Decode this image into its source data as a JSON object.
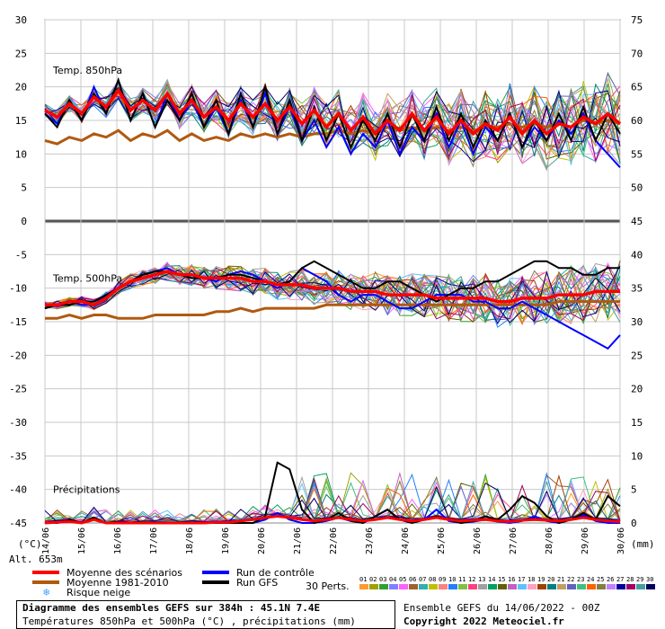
{
  "chart_data": {
    "type": "line",
    "title": "Diagramme des ensembles GEFS sur 384h : 45.1N 7.4E",
    "subtitle": "Températures 850hPa et 500hPa (°C) , précipitations (mm)",
    "run_info": "Ensemble GEFS du 14/06/2022 - 00Z",
    "copyright": "Copyright 2022 Meteociel.fr",
    "altitude_label": "Alt. 653m",
    "left_unit": "(°C)",
    "right_unit": "(mm)",
    "left_ticks": [
      30,
      25,
      20,
      15,
      10,
      5,
      0,
      -5,
      -10,
      -15,
      -20,
      -25,
      -30,
      -35,
      -40,
      -45
    ],
    "right_ticks_temp850": [
      75,
      70,
      65,
      60,
      55,
      50,
      45
    ],
    "right_ticks_temp500": [
      40,
      35,
      30,
      25,
      20
    ],
    "right_ticks_precip": [
      15,
      10,
      5,
      0
    ],
    "dates": [
      "14/06",
      "15/06",
      "16/06",
      "17/06",
      "18/06",
      "19/06",
      "20/06",
      "21/06",
      "22/06",
      "23/06",
      "24/06",
      "25/06",
      "26/06",
      "27/06",
      "28/06",
      "29/06",
      "30/06"
    ],
    "panel_labels": {
      "t850": "Temp. 850hPa",
      "t500": "Temp. 500hPa",
      "precip": "Précipitations"
    },
    "legend": [
      {
        "name": "Moyenne des scénarios",
        "color": "#ff0000"
      },
      {
        "name": "Moyenne 1981-2010",
        "color": "#b05a10"
      },
      {
        "name": "Risque neige",
        "color": "#40a0ff"
      },
      {
        "name": "Run de contrôle",
        "color": "#0000ff"
      },
      {
        "name": "Run GFS",
        "color": "#000000"
      }
    ],
    "perts_label": "30 Perts.",
    "pert_ids": [
      "01",
      "02",
      "03",
      "04",
      "05",
      "06",
      "07",
      "08",
      "09",
      "10",
      "11",
      "12",
      "13",
      "14",
      "15",
      "16",
      "17",
      "18",
      "19",
      "20",
      "21",
      "22",
      "23",
      "24",
      "25",
      "26",
      "27",
      "28",
      "29",
      "30"
    ],
    "pert_colors": [
      "#ff9a30",
      "#a0a000",
      "#30a030",
      "#8080ff",
      "#ff60ff",
      "#a06030",
      "#30b0b0",
      "#c0c000",
      "#ff8080",
      "#2080ff",
      "#80c040",
      "#ff4080",
      "#a0a0a0",
      "#00a060",
      "#606000",
      "#c060c0",
      "#60c0ff",
      "#ffa0c0",
      "#a04000",
      "#008080",
      "#c0a060",
      "#6060c0",
      "#40c080",
      "#ff6000",
      "#808040",
      "#c080ff",
      "#0000a0",
      "#a00060",
      "#40a0a0",
      "#000060"
    ],
    "series": {
      "mean_850": [
        16.5,
        15.5,
        17.5,
        16,
        18.5,
        17,
        19.5,
        16.5,
        18,
        16.5,
        19,
        16,
        18,
        15.5,
        17,
        15,
        17.5,
        15.5,
        17.5,
        15,
        17,
        14.5,
        16.5,
        14,
        16,
        13.5,
        15.5,
        13,
        15,
        13.5,
        16,
        13.5,
        15.5,
        13,
        15,
        13,
        14.5,
        13.5,
        15.5,
        13,
        15,
        13,
        14.5,
        14,
        15.5,
        14.5,
        16,
        14.5
      ],
      "climo_850": [
        12,
        11.5,
        12.5,
        12,
        13,
        12.5,
        13.5,
        12,
        13,
        12.5,
        13.5,
        12,
        13,
        12,
        12.5,
        12,
        13,
        12.5,
        13,
        12.5,
        13,
        12.5,
        13,
        13,
        13.5,
        13,
        13.5,
        13,
        14,
        13.5,
        14,
        13.5,
        14,
        13.5,
        14,
        13.5,
        14,
        14,
        14.5,
        14,
        14.5,
        14,
        14.5,
        14,
        15,
        14.5,
        15,
        14.5
      ],
      "control_850": [
        16,
        14.5,
        18,
        15,
        20,
        16,
        21,
        15,
        19,
        14,
        19,
        15,
        18,
        14,
        17,
        13,
        18,
        14,
        19,
        13,
        17,
        12,
        15,
        11,
        14,
        10,
        13,
        11,
        15,
        10,
        14,
        12,
        16,
        11,
        15,
        10,
        14,
        12,
        16,
        11,
        14,
        12,
        15,
        13,
        16,
        12,
        10,
        8
      ],
      "gfs_850": [
        16,
        14,
        18,
        15,
        19,
        16,
        21,
        15,
        19,
        14,
        18,
        15,
        19,
        14,
        18,
        13,
        19,
        14,
        20,
        13,
        18,
        12,
        17,
        12,
        16,
        11,
        15,
        12,
        16,
        11,
        16,
        12,
        17,
        12,
        16,
        11,
        15,
        12,
        16,
        11,
        15,
        12,
        16,
        12,
        17,
        12,
        16,
        13
      ],
      "mean_500": [
        -12.5,
        -12.5,
        -12,
        -12,
        -12.5,
        -11.5,
        -10,
        -9,
        -8.5,
        -8,
        -7.5,
        -8,
        -8,
        -8.5,
        -8.5,
        -8.5,
        -8.5,
        -9,
        -9,
        -9.5,
        -9.5,
        -9.5,
        -10,
        -10,
        -10,
        -10.5,
        -10.5,
        -10.5,
        -11,
        -11,
        -11,
        -11,
        -11.5,
        -11.5,
        -11.5,
        -11.5,
        -11.5,
        -12,
        -12,
        -11.5,
        -11.5,
        -11.5,
        -11,
        -11,
        -11,
        -10.5,
        -10.5,
        -10.5
      ],
      "climo_500": [
        -14.5,
        -14.5,
        -14,
        -14.5,
        -14,
        -14,
        -14.5,
        -14.5,
        -14.5,
        -14,
        -14,
        -14,
        -14,
        -14,
        -13.5,
        -13.5,
        -13,
        -13.5,
        -13,
        -13,
        -13,
        -13,
        -13,
        -12.5,
        -12.5,
        -12.5,
        -12.5,
        -12.5,
        -12.5,
        -12.5,
        -12.5,
        -12.5,
        -12.5,
        -12.5,
        -12.5,
        -12.5,
        -12.5,
        -12.5,
        -12.5,
        -12.5,
        -12.5,
        -12.5,
        -12,
        -12,
        -12,
        -12,
        -12,
        -12
      ],
      "control_500": [
        -13,
        -12.5,
        -12,
        -12.5,
        -12.5,
        -11,
        -10,
        -9,
        -8,
        -7.5,
        -7,
        -8,
        -8,
        -8.5,
        -9,
        -8,
        -7.5,
        -8,
        -9,
        -10,
        -9,
        -7,
        -8,
        -9,
        -11,
        -12,
        -11,
        -11,
        -12,
        -13,
        -13,
        -12,
        -11,
        -11,
        -11,
        -12,
        -12,
        -13,
        -13,
        -12,
        -13,
        -14,
        -15,
        -16,
        -17,
        -18,
        -19,
        -17
      ],
      "gfs_500": [
        -13,
        -12.5,
        -12.5,
        -12,
        -12,
        -11,
        -10,
        -9,
        -8,
        -7.5,
        -7.5,
        -8,
        -8.5,
        -8.5,
        -8.5,
        -8,
        -8,
        -8.5,
        -9,
        -9.5,
        -9,
        -7,
        -6,
        -7,
        -8,
        -9,
        -10,
        -10,
        -9,
        -9,
        -10,
        -11,
        -12,
        -11,
        -10,
        -10,
        -9,
        -9,
        -8,
        -7,
        -6,
        -6,
        -7,
        -7,
        -8,
        -8,
        -7,
        -7
      ],
      "mean_precip": [
        0,
        0.1,
        0.2,
        0,
        0.5,
        0,
        0,
        0,
        0,
        0,
        0,
        0,
        0,
        0,
        0.1,
        0.1,
        0.3,
        0.5,
        0.8,
        1,
        0.8,
        0.5,
        0.3,
        0.5,
        0.8,
        0.5,
        0.3,
        0.5,
        0.8,
        0.5,
        0.3,
        0.5,
        0.8,
        0.5,
        0.3,
        0.4,
        0.5,
        0.3,
        0.2,
        0.4,
        0.5,
        0.4,
        0.3,
        0.5,
        0.8,
        0.5,
        0.3,
        0.2
      ],
      "control_precip": [
        0,
        0,
        0.3,
        0,
        0.6,
        0,
        0,
        0,
        0,
        0,
        0,
        0,
        0,
        0,
        0,
        0,
        0,
        0,
        0.5,
        1.5,
        0.5,
        0,
        0,
        0.3,
        0.8,
        0.3,
        0,
        1,
        2,
        0.5,
        0,
        0.5,
        2,
        0.3,
        0,
        0.2,
        0.5,
        0.2,
        0,
        0.3,
        1,
        0.3,
        0,
        0.5,
        1.2,
        0.3,
        0,
        0
      ],
      "gfs_precip": [
        0,
        0,
        0.5,
        0,
        0.8,
        0,
        0,
        0,
        0,
        0,
        0,
        0,
        0,
        0,
        0,
        0,
        0,
        0,
        1,
        9,
        8,
        2,
        0,
        0.5,
        1.5,
        0.3,
        0,
        1,
        2,
        0.5,
        0,
        0.5,
        1,
        0.5,
        0,
        0.3,
        1,
        0.5,
        2,
        4,
        3,
        1,
        0,
        0.5,
        1.5,
        0.5,
        4,
        2.5
      ]
    },
    "y_range": [
      -45,
      30
    ],
    "grid": true
  }
}
